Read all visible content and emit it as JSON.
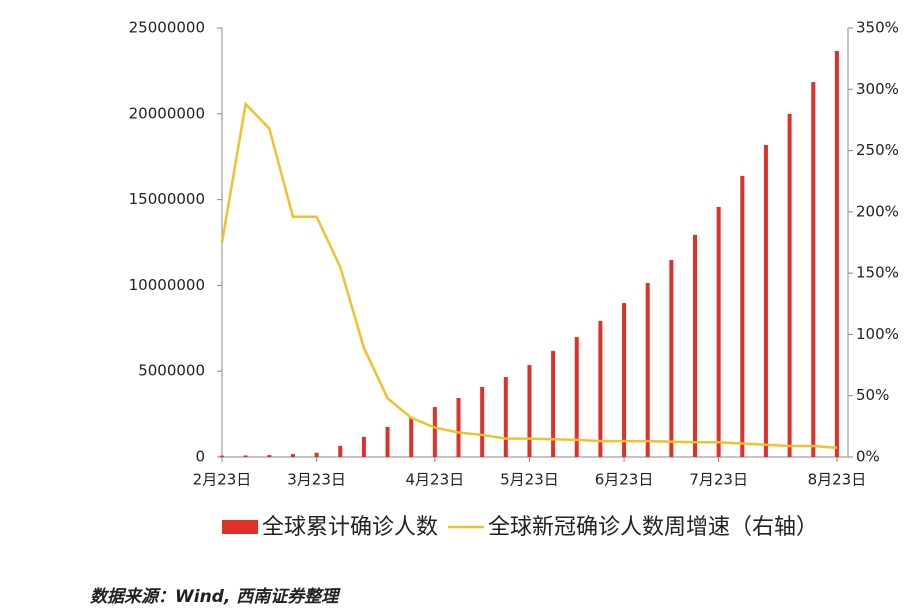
{
  "chart_data": {
    "type": "bar_line",
    "categories": [
      "2月23日",
      null,
      null,
      null,
      "3月23日",
      null,
      null,
      null,
      null,
      "4月23日",
      null,
      null,
      null,
      "5月23日",
      null,
      null,
      null,
      "6月23日",
      null,
      null,
      null,
      "7月23日",
      null,
      null,
      null,
      null,
      "8月23日"
    ],
    "series": [
      {
        "name": "全球累计确诊人数",
        "type": "bar",
        "color": "#e0302a",
        "values": [
          79000,
          88000,
          110000,
          170000,
          250000,
          650000,
          1170000,
          1750000,
          2270000,
          2910000,
          3440000,
          4080000,
          4660000,
          5360000,
          6180000,
          6990000,
          7930000,
          8970000,
          10140000,
          11480000,
          12940000,
          14570000,
          16380000,
          18180000,
          19990000,
          21850000,
          23660000
        ]
      },
      {
        "name": "全球新冠确诊人数周增速（右轴）",
        "type": "line",
        "axis": "y2",
        "color": "#f2c12e",
        "values": [
          175,
          288,
          268,
          196,
          196,
          155,
          89,
          48,
          32,
          24,
          20,
          18,
          15,
          15,
          14.5,
          14,
          13,
          13,
          13,
          12.5,
          12,
          12,
          11,
          10,
          9,
          9,
          7.5
        ]
      }
    ],
    "ylim": [
      0,
      25000000
    ],
    "yticks": [
      0,
      5000000,
      10000000,
      15000000,
      20000000,
      25000000
    ],
    "y2lim": [
      0,
      350
    ],
    "y2ticks": [
      {
        "value": 0,
        "label": "0%"
      },
      {
        "value": 50,
        "label": "50%"
      },
      {
        "value": 100,
        "label": "100%"
      },
      {
        "value": 150,
        "label": "150%"
      },
      {
        "value": 200,
        "label": "200%"
      },
      {
        "value": 250,
        "label": "250%"
      },
      {
        "value": 300,
        "label": "300%"
      },
      {
        "value": 350,
        "label": "350%"
      }
    ],
    "legend": "bottom",
    "source": "数据来源：Wind, 西南证券整理"
  }
}
